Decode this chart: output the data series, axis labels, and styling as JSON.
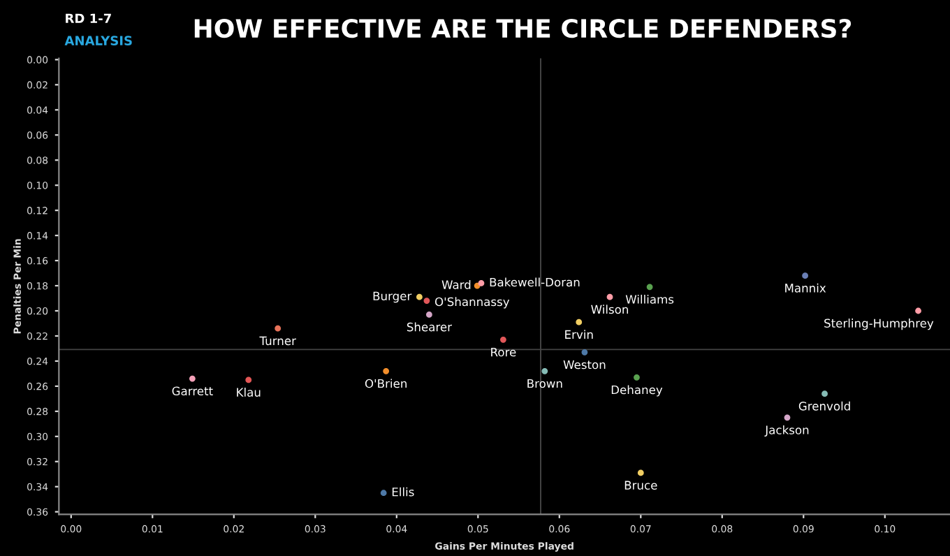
{
  "chart_data": {
    "type": "scatter",
    "title": "HOW EFFECTIVE ARE THE CIRCLE DEFENDERS?",
    "subtitle": "RD 1-7",
    "annotations": [
      "ANALYSIS",
      {
        "text": "Garrett",
        "x": 0.0149,
        "y": 0.254
      },
      {
        "text": "Klau",
        "x": 0.0218,
        "y": 0.255
      },
      {
        "text": "Turner",
        "x": 0.0254,
        "y": 0.214
      },
      {
        "text": "O'Brien",
        "x": 0.0387,
        "y": 0.248
      },
      {
        "text": "Burger",
        "x": 0.0428,
        "y": 0.189
      },
      {
        "text": "O'Shannassy",
        "x": 0.0437,
        "y": 0.192
      },
      {
        "text": "Shearer",
        "x": 0.044,
        "y": 0.203
      },
      {
        "text": "Ward",
        "x": 0.0499,
        "y": 0.18
      },
      {
        "text": "Bakewell-Doran",
        "x": 0.0504,
        "y": 0.178
      },
      {
        "text": "Rore",
        "x": 0.0531,
        "y": 0.223
      },
      {
        "text": "Brown",
        "x": 0.0582,
        "y": 0.248
      },
      {
        "text": "Ervin",
        "x": 0.0624,
        "y": 0.209
      },
      {
        "text": "Weston",
        "x": 0.0631,
        "y": 0.233
      },
      {
        "text": "Wilson",
        "x": 0.0662,
        "y": 0.189
      },
      {
        "text": "Williams",
        "x": 0.0711,
        "y": 0.181
      },
      {
        "text": "Dehaney",
        "x": 0.0695,
        "y": 0.253
      },
      {
        "text": "Mannix",
        "x": 0.0902,
        "y": 0.172
      },
      {
        "text": "Sterling-Humphrey",
        "x": 0.1041,
        "y": 0.2
      },
      {
        "text": "Grenvold",
        "x": 0.0926,
        "y": 0.266
      },
      {
        "text": "Jackson",
        "x": 0.088,
        "y": 0.285
      },
      {
        "text": "Bruce",
        "x": 0.07,
        "y": 0.329
      },
      {
        "text": "Ellis",
        "x": 0.0384,
        "y": 0.345
      }
    ],
    "xlabel": "Gains Per Minutes Played",
    "ylabel": "Penalties Per Min",
    "x": [
      0.0149,
      0.0218,
      0.0254,
      0.0387,
      0.0428,
      0.0437,
      0.044,
      0.0499,
      0.0504,
      0.0531,
      0.0582,
      0.0624,
      0.0631,
      0.0662,
      0.0711,
      0.0695,
      0.0902,
      0.1041,
      0.0926,
      0.088,
      0.07,
      0.0384
    ],
    "values": [
      0.254,
      0.255,
      0.214,
      0.248,
      0.189,
      0.192,
      0.203,
      0.18,
      0.178,
      0.223,
      0.248,
      0.209,
      0.233,
      0.189,
      0.181,
      0.253,
      0.172,
      0.2,
      0.266,
      0.285,
      0.329,
      0.345
    ],
    "colors": [
      "#f4a0b8",
      "#e45756",
      "#e8735a",
      "#f28e2b",
      "#f1ce63",
      "#e15759",
      "#d4a6c8",
      "#f28e2b",
      "#ff9da7",
      "#e15759",
      "#86bcb6",
      "#f1ce63",
      "#4e79a7",
      "#ff9da7",
      "#59a14f",
      "#59a14f",
      "#6a7fb5",
      "#ff9da7",
      "#86bcb6",
      "#d4a6c8",
      "#f1ce63",
      "#4e79a7"
    ],
    "marker": "circle",
    "xlim": [
      -0.0015,
      0.108
    ],
    "ylim": [
      0.362,
      -0.001
    ],
    "xticks": [
      {
        "value": 0,
        "label": "0.00"
      },
      {
        "value": 0.01,
        "label": "0.01"
      },
      {
        "value": 0.02,
        "label": "0.02"
      },
      {
        "value": 0.03,
        "label": "0.03"
      },
      {
        "value": 0.04,
        "label": "0.04"
      },
      {
        "value": 0.05,
        "label": "0.05"
      },
      {
        "value": 0.06,
        "label": "0.06"
      },
      {
        "value": 0.07,
        "label": "0.07"
      },
      {
        "value": 0.08,
        "label": "0.08"
      },
      {
        "value": 0.09,
        "label": "0.09"
      },
      {
        "value": 0.1,
        "label": "0.10"
      }
    ],
    "yticks": [
      {
        "value": 0,
        "label": "0.00"
      },
      {
        "value": 0.02,
        "label": "0.02"
      },
      {
        "value": 0.04,
        "label": "0.04"
      },
      {
        "value": 0.06,
        "label": "0.06"
      },
      {
        "value": 0.08,
        "label": "0.08"
      },
      {
        "value": 0.1,
        "label": "0.10"
      },
      {
        "value": 0.12,
        "label": "0.12"
      },
      {
        "value": 0.14,
        "label": "0.14"
      },
      {
        "value": 0.16,
        "label": "0.16"
      },
      {
        "value": 0.18,
        "label": "0.18"
      },
      {
        "value": 0.2,
        "label": "0.20"
      },
      {
        "value": 0.22,
        "label": "0.22"
      },
      {
        "value": 0.24,
        "label": "0.24"
      },
      {
        "value": 0.26,
        "label": "0.26"
      },
      {
        "value": 0.28,
        "label": "0.28"
      },
      {
        "value": 0.3,
        "label": "0.30"
      },
      {
        "value": 0.32,
        "label": "0.32"
      },
      {
        "value": 0.34,
        "label": "0.34"
      },
      {
        "value": 0.36,
        "label": "0.36"
      }
    ],
    "ref_lines": [
      {
        "axis": "x",
        "value": 0.0577,
        "color": "#444444"
      },
      {
        "axis": "y",
        "value": 0.2308,
        "color": "#444444"
      }
    ],
    "grid": false
  }
}
